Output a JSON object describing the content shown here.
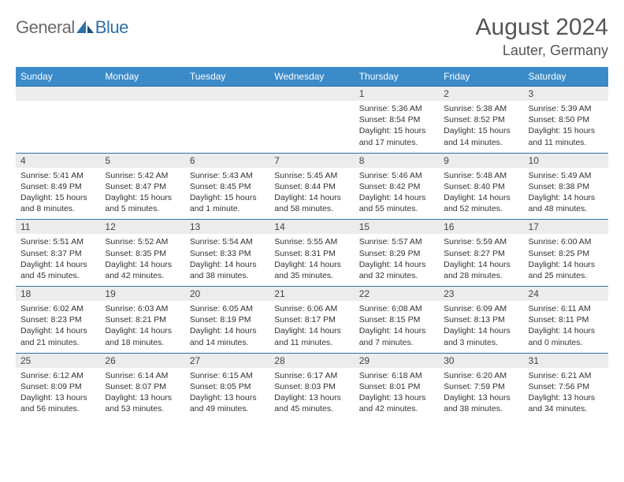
{
  "logo": {
    "general": "General",
    "blue": "Blue"
  },
  "title": "August 2024",
  "location": "Lauter, Germany",
  "daysOfWeek": [
    "Sunday",
    "Monday",
    "Tuesday",
    "Wednesday",
    "Thursday",
    "Friday",
    "Saturday"
  ],
  "colors": {
    "headerBg": "#3b8bc9",
    "headerText": "#ffffff",
    "dayNumBg": "#ececec",
    "cellBorderTop": "#2f6fa8",
    "bodyText": "#333333",
    "titleText": "#555555",
    "logoGray": "#6b6b6b",
    "logoBlue": "#2f6fa8"
  },
  "weeks": [
    [
      null,
      null,
      null,
      null,
      {
        "n": "1",
        "sr": "Sunrise: 5:36 AM",
        "ss": "Sunset: 8:54 PM",
        "d1": "Daylight: 15 hours",
        "d2": "and 17 minutes."
      },
      {
        "n": "2",
        "sr": "Sunrise: 5:38 AM",
        "ss": "Sunset: 8:52 PM",
        "d1": "Daylight: 15 hours",
        "d2": "and 14 minutes."
      },
      {
        "n": "3",
        "sr": "Sunrise: 5:39 AM",
        "ss": "Sunset: 8:50 PM",
        "d1": "Daylight: 15 hours",
        "d2": "and 11 minutes."
      }
    ],
    [
      {
        "n": "4",
        "sr": "Sunrise: 5:41 AM",
        "ss": "Sunset: 8:49 PM",
        "d1": "Daylight: 15 hours",
        "d2": "and 8 minutes."
      },
      {
        "n": "5",
        "sr": "Sunrise: 5:42 AM",
        "ss": "Sunset: 8:47 PM",
        "d1": "Daylight: 15 hours",
        "d2": "and 5 minutes."
      },
      {
        "n": "6",
        "sr": "Sunrise: 5:43 AM",
        "ss": "Sunset: 8:45 PM",
        "d1": "Daylight: 15 hours",
        "d2": "and 1 minute."
      },
      {
        "n": "7",
        "sr": "Sunrise: 5:45 AM",
        "ss": "Sunset: 8:44 PM",
        "d1": "Daylight: 14 hours",
        "d2": "and 58 minutes."
      },
      {
        "n": "8",
        "sr": "Sunrise: 5:46 AM",
        "ss": "Sunset: 8:42 PM",
        "d1": "Daylight: 14 hours",
        "d2": "and 55 minutes."
      },
      {
        "n": "9",
        "sr": "Sunrise: 5:48 AM",
        "ss": "Sunset: 8:40 PM",
        "d1": "Daylight: 14 hours",
        "d2": "and 52 minutes."
      },
      {
        "n": "10",
        "sr": "Sunrise: 5:49 AM",
        "ss": "Sunset: 8:38 PM",
        "d1": "Daylight: 14 hours",
        "d2": "and 48 minutes."
      }
    ],
    [
      {
        "n": "11",
        "sr": "Sunrise: 5:51 AM",
        "ss": "Sunset: 8:37 PM",
        "d1": "Daylight: 14 hours",
        "d2": "and 45 minutes."
      },
      {
        "n": "12",
        "sr": "Sunrise: 5:52 AM",
        "ss": "Sunset: 8:35 PM",
        "d1": "Daylight: 14 hours",
        "d2": "and 42 minutes."
      },
      {
        "n": "13",
        "sr": "Sunrise: 5:54 AM",
        "ss": "Sunset: 8:33 PM",
        "d1": "Daylight: 14 hours",
        "d2": "and 38 minutes."
      },
      {
        "n": "14",
        "sr": "Sunrise: 5:55 AM",
        "ss": "Sunset: 8:31 PM",
        "d1": "Daylight: 14 hours",
        "d2": "and 35 minutes."
      },
      {
        "n": "15",
        "sr": "Sunrise: 5:57 AM",
        "ss": "Sunset: 8:29 PM",
        "d1": "Daylight: 14 hours",
        "d2": "and 32 minutes."
      },
      {
        "n": "16",
        "sr": "Sunrise: 5:59 AM",
        "ss": "Sunset: 8:27 PM",
        "d1": "Daylight: 14 hours",
        "d2": "and 28 minutes."
      },
      {
        "n": "17",
        "sr": "Sunrise: 6:00 AM",
        "ss": "Sunset: 8:25 PM",
        "d1": "Daylight: 14 hours",
        "d2": "and 25 minutes."
      }
    ],
    [
      {
        "n": "18",
        "sr": "Sunrise: 6:02 AM",
        "ss": "Sunset: 8:23 PM",
        "d1": "Daylight: 14 hours",
        "d2": "and 21 minutes."
      },
      {
        "n": "19",
        "sr": "Sunrise: 6:03 AM",
        "ss": "Sunset: 8:21 PM",
        "d1": "Daylight: 14 hours",
        "d2": "and 18 minutes."
      },
      {
        "n": "20",
        "sr": "Sunrise: 6:05 AM",
        "ss": "Sunset: 8:19 PM",
        "d1": "Daylight: 14 hours",
        "d2": "and 14 minutes."
      },
      {
        "n": "21",
        "sr": "Sunrise: 6:06 AM",
        "ss": "Sunset: 8:17 PM",
        "d1": "Daylight: 14 hours",
        "d2": "and 11 minutes."
      },
      {
        "n": "22",
        "sr": "Sunrise: 6:08 AM",
        "ss": "Sunset: 8:15 PM",
        "d1": "Daylight: 14 hours",
        "d2": "and 7 minutes."
      },
      {
        "n": "23",
        "sr": "Sunrise: 6:09 AM",
        "ss": "Sunset: 8:13 PM",
        "d1": "Daylight: 14 hours",
        "d2": "and 3 minutes."
      },
      {
        "n": "24",
        "sr": "Sunrise: 6:11 AM",
        "ss": "Sunset: 8:11 PM",
        "d1": "Daylight: 14 hours",
        "d2": "and 0 minutes."
      }
    ],
    [
      {
        "n": "25",
        "sr": "Sunrise: 6:12 AM",
        "ss": "Sunset: 8:09 PM",
        "d1": "Daylight: 13 hours",
        "d2": "and 56 minutes."
      },
      {
        "n": "26",
        "sr": "Sunrise: 6:14 AM",
        "ss": "Sunset: 8:07 PM",
        "d1": "Daylight: 13 hours",
        "d2": "and 53 minutes."
      },
      {
        "n": "27",
        "sr": "Sunrise: 6:15 AM",
        "ss": "Sunset: 8:05 PM",
        "d1": "Daylight: 13 hours",
        "d2": "and 49 minutes."
      },
      {
        "n": "28",
        "sr": "Sunrise: 6:17 AM",
        "ss": "Sunset: 8:03 PM",
        "d1": "Daylight: 13 hours",
        "d2": "and 45 minutes."
      },
      {
        "n": "29",
        "sr": "Sunrise: 6:18 AM",
        "ss": "Sunset: 8:01 PM",
        "d1": "Daylight: 13 hours",
        "d2": "and 42 minutes."
      },
      {
        "n": "30",
        "sr": "Sunrise: 6:20 AM",
        "ss": "Sunset: 7:59 PM",
        "d1": "Daylight: 13 hours",
        "d2": "and 38 minutes."
      },
      {
        "n": "31",
        "sr": "Sunrise: 6:21 AM",
        "ss": "Sunset: 7:56 PM",
        "d1": "Daylight: 13 hours",
        "d2": "and 34 minutes."
      }
    ]
  ]
}
